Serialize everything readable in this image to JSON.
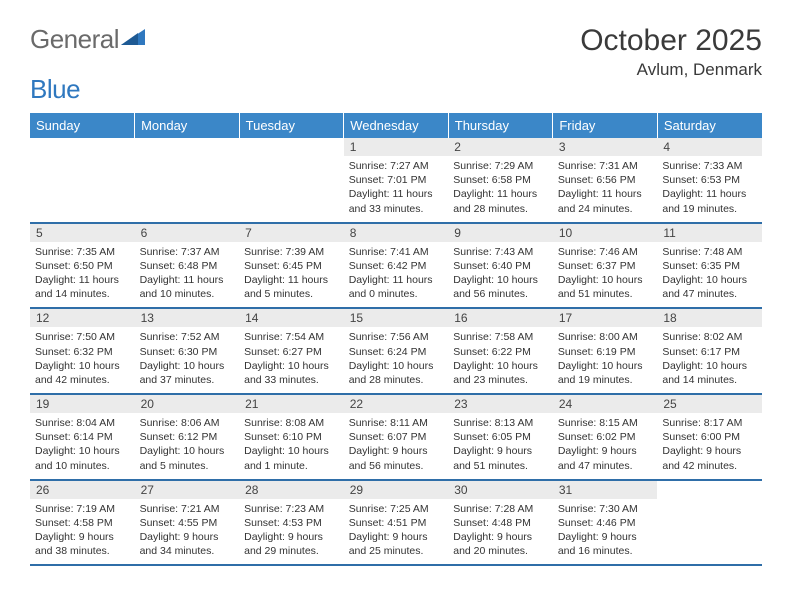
{
  "logo": {
    "gray": "General",
    "blue": "Blue"
  },
  "title": "October 2025",
  "location": "Avlum, Denmark",
  "colors": {
    "header_bg": "#3b87c8",
    "header_text": "#ffffff",
    "row_divider": "#2f6ea8",
    "daynum_bg": "#ebebeb",
    "logo_gray": "#6a6a6a",
    "logo_blue": "#2f78bf"
  },
  "dayNames": [
    "Sunday",
    "Monday",
    "Tuesday",
    "Wednesday",
    "Thursday",
    "Friday",
    "Saturday"
  ],
  "weeks": [
    [
      {
        "n": "",
        "lines": []
      },
      {
        "n": "",
        "lines": []
      },
      {
        "n": "",
        "lines": []
      },
      {
        "n": "1",
        "lines": [
          "Sunrise: 7:27 AM",
          "Sunset: 7:01 PM",
          "Daylight: 11 hours and 33 minutes."
        ]
      },
      {
        "n": "2",
        "lines": [
          "Sunrise: 7:29 AM",
          "Sunset: 6:58 PM",
          "Daylight: 11 hours and 28 minutes."
        ]
      },
      {
        "n": "3",
        "lines": [
          "Sunrise: 7:31 AM",
          "Sunset: 6:56 PM",
          "Daylight: 11 hours and 24 minutes."
        ]
      },
      {
        "n": "4",
        "lines": [
          "Sunrise: 7:33 AM",
          "Sunset: 6:53 PM",
          "Daylight: 11 hours and 19 minutes."
        ]
      }
    ],
    [
      {
        "n": "5",
        "lines": [
          "Sunrise: 7:35 AM",
          "Sunset: 6:50 PM",
          "Daylight: 11 hours and 14 minutes."
        ]
      },
      {
        "n": "6",
        "lines": [
          "Sunrise: 7:37 AM",
          "Sunset: 6:48 PM",
          "Daylight: 11 hours and 10 minutes."
        ]
      },
      {
        "n": "7",
        "lines": [
          "Sunrise: 7:39 AM",
          "Sunset: 6:45 PM",
          "Daylight: 11 hours and 5 minutes."
        ]
      },
      {
        "n": "8",
        "lines": [
          "Sunrise: 7:41 AM",
          "Sunset: 6:42 PM",
          "Daylight: 11 hours and 0 minutes."
        ]
      },
      {
        "n": "9",
        "lines": [
          "Sunrise: 7:43 AM",
          "Sunset: 6:40 PM",
          "Daylight: 10 hours and 56 minutes."
        ]
      },
      {
        "n": "10",
        "lines": [
          "Sunrise: 7:46 AM",
          "Sunset: 6:37 PM",
          "Daylight: 10 hours and 51 minutes."
        ]
      },
      {
        "n": "11",
        "lines": [
          "Sunrise: 7:48 AM",
          "Sunset: 6:35 PM",
          "Daylight: 10 hours and 47 minutes."
        ]
      }
    ],
    [
      {
        "n": "12",
        "lines": [
          "Sunrise: 7:50 AM",
          "Sunset: 6:32 PM",
          "Daylight: 10 hours and 42 minutes."
        ]
      },
      {
        "n": "13",
        "lines": [
          "Sunrise: 7:52 AM",
          "Sunset: 6:30 PM",
          "Daylight: 10 hours and 37 minutes."
        ]
      },
      {
        "n": "14",
        "lines": [
          "Sunrise: 7:54 AM",
          "Sunset: 6:27 PM",
          "Daylight: 10 hours and 33 minutes."
        ]
      },
      {
        "n": "15",
        "lines": [
          "Sunrise: 7:56 AM",
          "Sunset: 6:24 PM",
          "Daylight: 10 hours and 28 minutes."
        ]
      },
      {
        "n": "16",
        "lines": [
          "Sunrise: 7:58 AM",
          "Sunset: 6:22 PM",
          "Daylight: 10 hours and 23 minutes."
        ]
      },
      {
        "n": "17",
        "lines": [
          "Sunrise: 8:00 AM",
          "Sunset: 6:19 PM",
          "Daylight: 10 hours and 19 minutes."
        ]
      },
      {
        "n": "18",
        "lines": [
          "Sunrise: 8:02 AM",
          "Sunset: 6:17 PM",
          "Daylight: 10 hours and 14 minutes."
        ]
      }
    ],
    [
      {
        "n": "19",
        "lines": [
          "Sunrise: 8:04 AM",
          "Sunset: 6:14 PM",
          "Daylight: 10 hours and 10 minutes."
        ]
      },
      {
        "n": "20",
        "lines": [
          "Sunrise: 8:06 AM",
          "Sunset: 6:12 PM",
          "Daylight: 10 hours and 5 minutes."
        ]
      },
      {
        "n": "21",
        "lines": [
          "Sunrise: 8:08 AM",
          "Sunset: 6:10 PM",
          "Daylight: 10 hours and 1 minute."
        ]
      },
      {
        "n": "22",
        "lines": [
          "Sunrise: 8:11 AM",
          "Sunset: 6:07 PM",
          "Daylight: 9 hours and 56 minutes."
        ]
      },
      {
        "n": "23",
        "lines": [
          "Sunrise: 8:13 AM",
          "Sunset: 6:05 PM",
          "Daylight: 9 hours and 51 minutes."
        ]
      },
      {
        "n": "24",
        "lines": [
          "Sunrise: 8:15 AM",
          "Sunset: 6:02 PM",
          "Daylight: 9 hours and 47 minutes."
        ]
      },
      {
        "n": "25",
        "lines": [
          "Sunrise: 8:17 AM",
          "Sunset: 6:00 PM",
          "Daylight: 9 hours and 42 minutes."
        ]
      }
    ],
    [
      {
        "n": "26",
        "lines": [
          "Sunrise: 7:19 AM",
          "Sunset: 4:58 PM",
          "Daylight: 9 hours and 38 minutes."
        ]
      },
      {
        "n": "27",
        "lines": [
          "Sunrise: 7:21 AM",
          "Sunset: 4:55 PM",
          "Daylight: 9 hours and 34 minutes."
        ]
      },
      {
        "n": "28",
        "lines": [
          "Sunrise: 7:23 AM",
          "Sunset: 4:53 PM",
          "Daylight: 9 hours and 29 minutes."
        ]
      },
      {
        "n": "29",
        "lines": [
          "Sunrise: 7:25 AM",
          "Sunset: 4:51 PM",
          "Daylight: 9 hours and 25 minutes."
        ]
      },
      {
        "n": "30",
        "lines": [
          "Sunrise: 7:28 AM",
          "Sunset: 4:48 PM",
          "Daylight: 9 hours and 20 minutes."
        ]
      },
      {
        "n": "31",
        "lines": [
          "Sunrise: 7:30 AM",
          "Sunset: 4:46 PM",
          "Daylight: 9 hours and 16 minutes."
        ]
      },
      {
        "n": "",
        "lines": []
      }
    ]
  ]
}
